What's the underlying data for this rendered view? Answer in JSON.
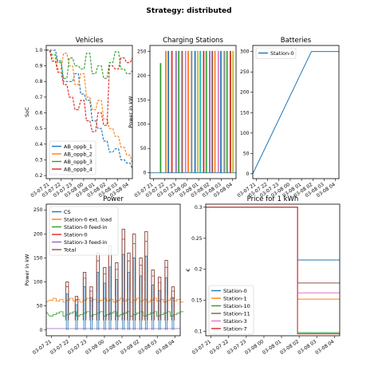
{
  "figure": {
    "title": "Strategy: distributed"
  },
  "time_ticks": [
    "03-07 21",
    "03-07 22",
    "03-07 23",
    "03-08 00",
    "03-08 01",
    "03-08 02",
    "03-08 03",
    "03-08 04"
  ],
  "colors": {
    "blue": "#1f77b4",
    "orange": "#ff7f0e",
    "green": "#2ca02c",
    "red": "#d62728",
    "purple": "#9467bd",
    "brown": "#8c564b",
    "pink": "#e377c2",
    "gray": "#7f7f7f",
    "olive": "#bcbd22",
    "cyan": "#17becf"
  },
  "chart_data": [
    {
      "id": "vehicles",
      "type": "line",
      "title": "Vehicles",
      "xlabel": "",
      "ylabel": "SoC",
      "ylim": [
        0.18,
        1.03
      ],
      "yticks": [
        0.2,
        0.3,
        0.4,
        0.5,
        0.6,
        0.7,
        0.8,
        0.9,
        1.0
      ],
      "xticks": [
        "03-07 21",
        "03-07 22",
        "03-07 23",
        "03-08 00",
        "03-08 01",
        "03-08 02",
        "03-08 03",
        "03-08 04"
      ],
      "legend_position": "lower-left",
      "series": [
        {
          "name": "AB_oppb_1",
          "color": "#1f77b4",
          "values": [
            1.0,
            1.0,
            0.93,
            0.8,
            0.8,
            0.85,
            0.72,
            0.68,
            0.55,
            0.5,
            0.42,
            0.35,
            0.37,
            0.3,
            0.28,
            0.24
          ]
        },
        {
          "name": "AB_oppb_2",
          "color": "#ff7f0e",
          "values": [
            1.0,
            0.95,
            0.88,
            0.98,
            0.9,
            0.78,
            0.85,
            0.7,
            0.62,
            0.68,
            0.56,
            0.5,
            0.45,
            0.38,
            0.33,
            0.28
          ]
        },
        {
          "name": "AB_oppb_3",
          "color": "#2ca02c",
          "values": [
            1.0,
            0.97,
            0.92,
            0.82,
            0.95,
            0.9,
            0.88,
            0.98,
            0.85,
            0.9,
            0.82,
            0.92,
            0.99,
            0.88,
            0.85,
            0.87
          ]
        },
        {
          "name": "AB_oppb_4",
          "color": "#d62728",
          "values": [
            1.0,
            0.93,
            0.86,
            0.78,
            0.7,
            0.62,
            0.68,
            0.55,
            0.48,
            0.6,
            0.52,
            0.9,
            0.88,
            0.95,
            0.92,
            0.95
          ]
        }
      ]
    },
    {
      "id": "stations",
      "type": "line",
      "title": "Charging Stations",
      "xlabel": "",
      "ylabel": "Power in kW",
      "ylim": [
        -12,
        262
      ],
      "yticks": [
        0,
        50,
        100,
        150,
        200,
        250
      ],
      "xticks": [
        "03-07 21",
        "03-07 22",
        "03-07 23",
        "03-08 00",
        "03-08 01",
        "03-08 02",
        "03-08 03",
        "03-08 04"
      ],
      "peak_kw": 250,
      "pulses": [
        {
          "t": 0.12,
          "w": 0.008,
          "h": 225,
          "color": "#2ca02c"
        },
        {
          "t": 0.18,
          "w": 0.009,
          "h": 250,
          "color": "#ff7f0e"
        },
        {
          "t": 0.21,
          "w": 0.009,
          "h": 250,
          "color": "#1f77b4"
        },
        {
          "t": 0.25,
          "w": 0.01,
          "h": 250,
          "color": "#d62728"
        },
        {
          "t": 0.3,
          "w": 0.008,
          "h": 250,
          "color": "#9467bd"
        },
        {
          "t": 0.33,
          "w": 0.01,
          "h": 250,
          "color": "#2ca02c"
        },
        {
          "t": 0.37,
          "w": 0.009,
          "h": 250,
          "color": "#8c564b"
        },
        {
          "t": 0.41,
          "w": 0.008,
          "h": 250,
          "color": "#e377c2"
        },
        {
          "t": 0.44,
          "w": 0.01,
          "h": 250,
          "color": "#ff7f0e"
        },
        {
          "t": 0.48,
          "w": 0.009,
          "h": 250,
          "color": "#7f7f7f"
        },
        {
          "t": 0.52,
          "w": 0.008,
          "h": 250,
          "color": "#1f77b4"
        },
        {
          "t": 0.55,
          "w": 0.01,
          "h": 250,
          "color": "#bcbd22"
        },
        {
          "t": 0.58,
          "w": 0.009,
          "h": 250,
          "color": "#17becf"
        },
        {
          "t": 0.62,
          "w": 0.008,
          "h": 250,
          "color": "#d62728"
        },
        {
          "t": 0.65,
          "w": 0.009,
          "h": 250,
          "color": "#2ca02c"
        },
        {
          "t": 0.69,
          "w": 0.009,
          "h": 250,
          "color": "#9467bd"
        },
        {
          "t": 0.72,
          "w": 0.008,
          "h": 250,
          "color": "#8c564b"
        },
        {
          "t": 0.75,
          "w": 0.01,
          "h": 250,
          "color": "#ff7f0e"
        },
        {
          "t": 0.79,
          "w": 0.009,
          "h": 250,
          "color": "#e377c2"
        },
        {
          "t": 0.82,
          "w": 0.008,
          "h": 250,
          "color": "#1f77b4"
        },
        {
          "t": 0.86,
          "w": 0.009,
          "h": 250,
          "color": "#7f7f7f"
        },
        {
          "t": 0.89,
          "w": 0.01,
          "h": 250,
          "color": "#2ca02c"
        },
        {
          "t": 0.93,
          "w": 0.008,
          "h": 250,
          "color": "#d62728"
        },
        {
          "t": 0.96,
          "w": 0.009,
          "h": 250,
          "color": "#bcbd22"
        }
      ]
    },
    {
      "id": "batteries",
      "type": "line",
      "title": "Batteries",
      "xlabel": "",
      "ylabel": "",
      "ylim": [
        -12,
        315
      ],
      "yticks": [
        0,
        50,
        100,
        150,
        200,
        250,
        300
      ],
      "xticks": [
        "03-07 21",
        "03-07 22",
        "03-07 23",
        "03-08 00",
        "03-08 01",
        "03-08 02",
        "03-08 03",
        "03-08 04"
      ],
      "legend_position": "upper-left",
      "series": [
        {
          "name": "Station-0",
          "color": "#1f77b4",
          "x": [
            0.0,
            0.68,
            1.0
          ],
          "y": [
            0,
            300,
            300
          ]
        }
      ]
    },
    {
      "id": "power",
      "type": "line",
      "title": "Power",
      "xlabel": "",
      "ylabel": "Power in kW",
      "ylim": [
        -12,
        262
      ],
      "yticks": [
        0,
        50,
        100,
        150,
        200,
        250
      ],
      "xticks": [
        "03-07 21",
        "03-07 22",
        "03-07 23",
        "03-08 00",
        "03-08 01",
        "03-08 02",
        "03-08 03",
        "03-08 04"
      ],
      "legend_position": "upper-left",
      "series": [
        {
          "name": "CS",
          "color": "#1f77b4"
        },
        {
          "name": "Station-0 ext. load",
          "color": "#ff7f0e"
        },
        {
          "name": "Station-0 feed-in",
          "color": "#2ca02c"
        },
        {
          "name": "Station-0",
          "color": "#d62728"
        },
        {
          "name": "Station-3 feed-in",
          "color": "#9467bd"
        },
        {
          "name": "Total",
          "color": "#8c564b"
        }
      ],
      "total_peaks": [
        {
          "t": 0.15,
          "v": 100
        },
        {
          "t": 0.22,
          "v": 70
        },
        {
          "t": 0.28,
          "v": 120
        },
        {
          "t": 0.33,
          "v": 90
        },
        {
          "t": 0.38,
          "v": 160
        },
        {
          "t": 0.43,
          "v": 130
        },
        {
          "t": 0.47,
          "v": 175
        },
        {
          "t": 0.52,
          "v": 140
        },
        {
          "t": 0.57,
          "v": 210
        },
        {
          "t": 0.61,
          "v": 160
        },
        {
          "t": 0.65,
          "v": 200
        },
        {
          "t": 0.7,
          "v": 150
        },
        {
          "t": 0.74,
          "v": 205
        },
        {
          "t": 0.79,
          "v": 125
        },
        {
          "t": 0.84,
          "v": 110
        },
        {
          "t": 0.89,
          "v": 145
        },
        {
          "t": 0.94,
          "v": 90
        }
      ],
      "ext_load_base": 58,
      "feed_in_base": 38
    },
    {
      "id": "price",
      "type": "line",
      "title": "Price for 1 kWh",
      "xlabel": "",
      "ylabel": "€",
      "ylim": [
        0.093,
        0.305
      ],
      "yticks": [
        0.1,
        0.15,
        0.2,
        0.25,
        0.3
      ],
      "xticks": [
        "03-07 21",
        "03-07 22",
        "03-07 23",
        "03-08 00",
        "03-08 01",
        "03-08 02",
        "03-08 03",
        "03-08 04"
      ],
      "legend_position": "lower-left",
      "step_t": 0.685,
      "series": [
        {
          "name": "Station-0",
          "color": "#1f77b4",
          "y": [
            0.3,
            0.215
          ]
        },
        {
          "name": "Station-1",
          "color": "#ff7f0e",
          "y": [
            0.3,
            0.152
          ]
        },
        {
          "name": "Station-10",
          "color": "#2ca02c",
          "y": [
            0.3,
            0.098
          ]
        },
        {
          "name": "Station-11",
          "color": "#8c564b",
          "y": [
            0.3,
            0.178
          ]
        },
        {
          "name": "Station-3",
          "color": "#e377c2",
          "y": [
            0.3,
            0.162
          ]
        },
        {
          "name": "Station-7",
          "color": "#d62728",
          "y": [
            0.3,
            0.096
          ]
        }
      ]
    }
  ]
}
